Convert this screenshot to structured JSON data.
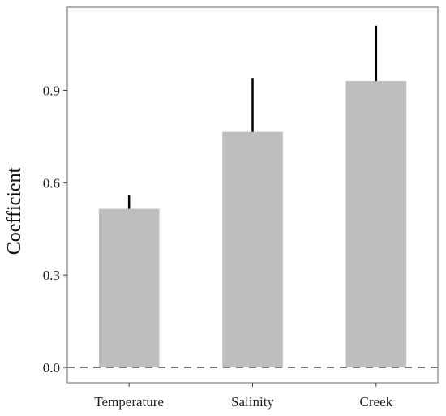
{
  "chart_data": {
    "type": "bar",
    "categories": [
      "Temperature",
      "Salinity",
      "Creek"
    ],
    "values": [
      0.515,
      0.765,
      0.93
    ],
    "error_upper": [
      0.56,
      0.94,
      1.11
    ],
    "title": "",
    "xlabel": "",
    "ylabel": "Coefficient",
    "ylim": [
      -0.05,
      1.17
    ],
    "yticks": [
      0.0,
      0.3,
      0.6,
      0.9
    ],
    "ytick_labels": [
      "0.0",
      "0.3",
      "0.6",
      "0.9"
    ],
    "reference_line": {
      "y": 0.0,
      "style": "dashed"
    },
    "grid": false,
    "legend": "none",
    "colors": {
      "bar": "#bebebe",
      "error_bar": "#000000",
      "reference_line": "#808080",
      "frame": "#7f7f7f"
    }
  }
}
